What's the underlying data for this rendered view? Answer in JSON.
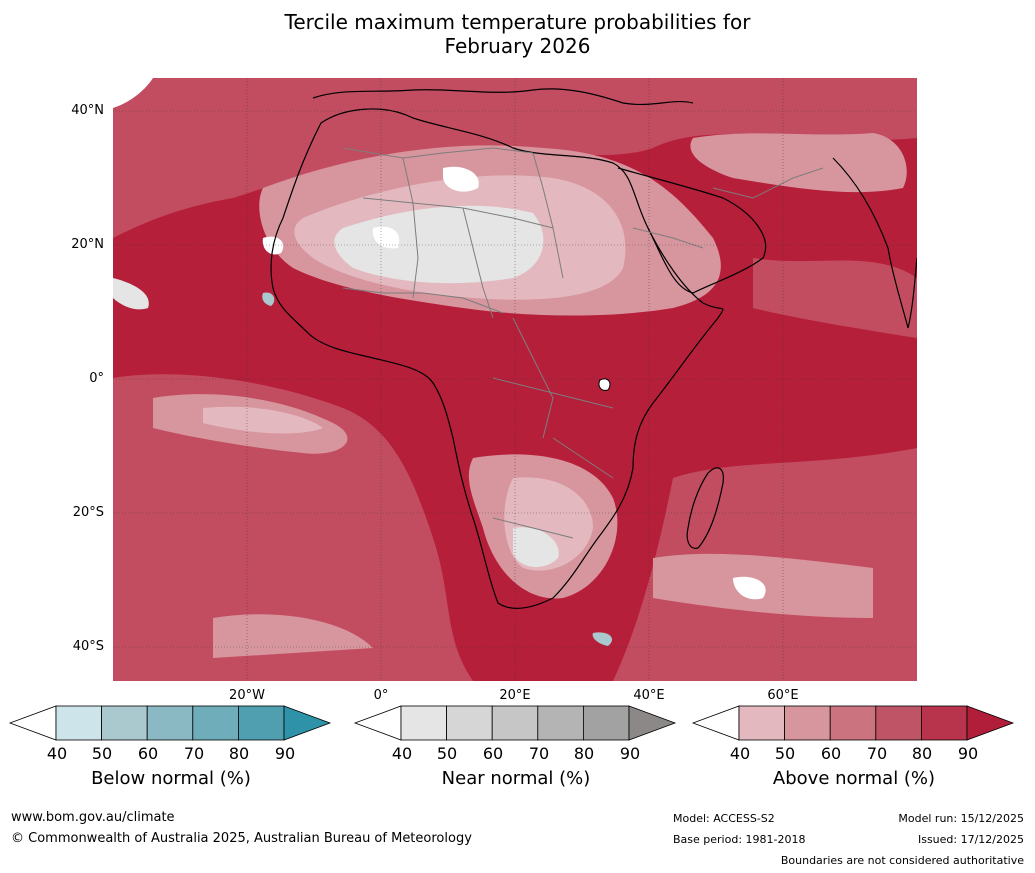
{
  "title_line1": "Tercile maximum temperature probabilities for",
  "title_line2": "February 2026",
  "lat_labels": [
    "40°N",
    "20°N",
    "0°",
    "20°S",
    "40°S"
  ],
  "lon_labels": [
    "20°W",
    "0°",
    "20°E",
    "40°E",
    "60°E"
  ],
  "colorbars": [
    {
      "label": "Below normal (%)",
      "ticks": [
        "40",
        "50",
        "60",
        "70",
        "80",
        "90"
      ],
      "colors": [
        "#ffffff",
        "#cde4ea",
        "#a9c9cf",
        "#8ab9c3",
        "#6fadbb",
        "#4f9fb0",
        "#2e93a8"
      ]
    },
    {
      "label": "Near normal (%)",
      "ticks": [
        "40",
        "50",
        "60",
        "70",
        "80",
        "90"
      ],
      "colors": [
        "#ffffff",
        "#e5e5e5",
        "#d6d6d6",
        "#c6c6c6",
        "#b4b4b4",
        "#a3a2a2",
        "#8c8888"
      ]
    },
    {
      "label": "Above normal (%)",
      "ticks": [
        "40",
        "50",
        "60",
        "70",
        "80",
        "90"
      ],
      "colors": [
        "#ffffff",
        "#e3b9bf",
        "#d7959e",
        "#cb737f",
        "#bf5466",
        "#b7344c",
        "#b11e3a"
      ]
    }
  ],
  "footer": {
    "website": "www.bom.gov.au/climate",
    "copyright": "© Commonwealth of Australia 2025, Australian Bureau of Meteorology",
    "model": "Model: ACCESS-S2",
    "base_period": "Base period: 1981-2018",
    "model_run": "Model run: 15/12/2025",
    "issued": "Issued: 17/12/2025",
    "disclaimer": "Boundaries are not considered authoritative"
  }
}
